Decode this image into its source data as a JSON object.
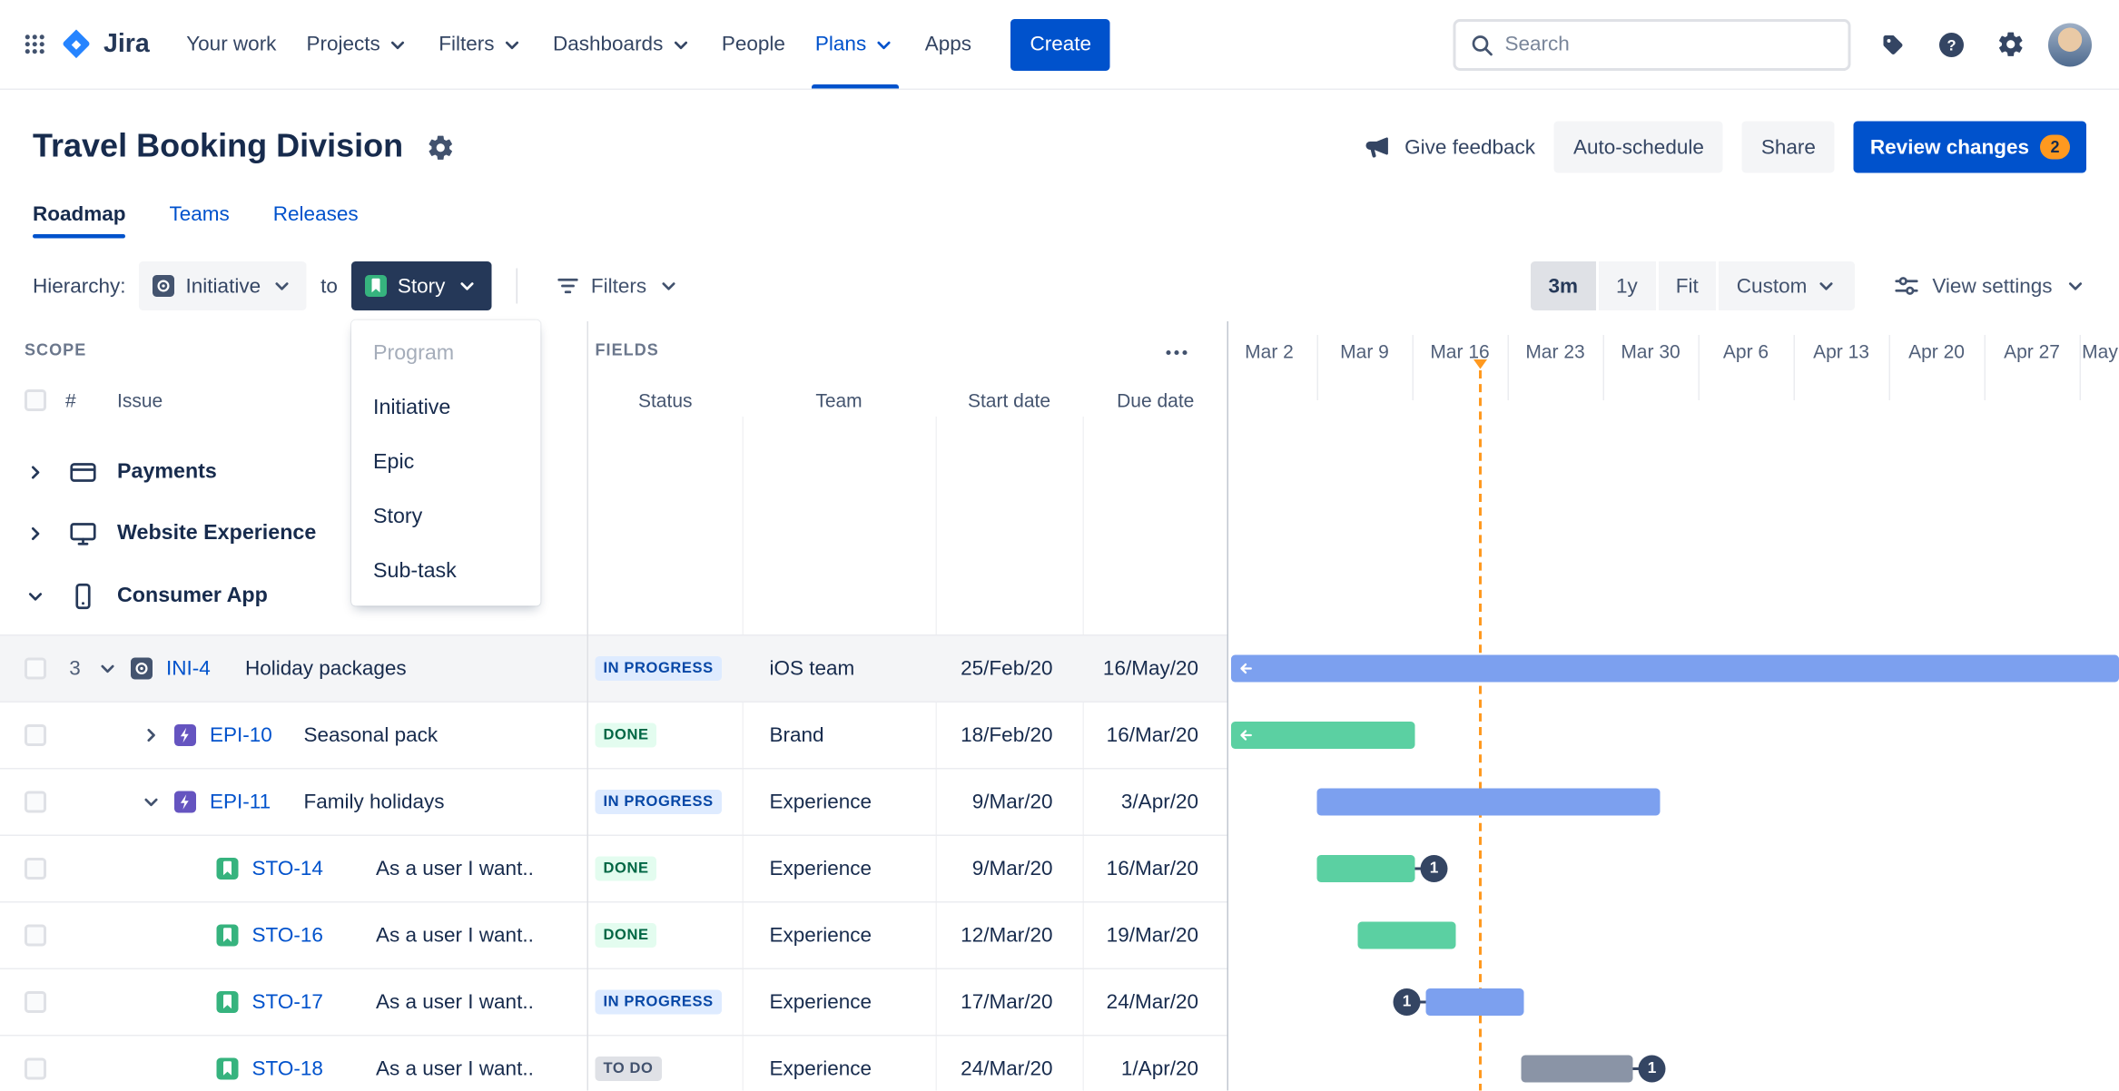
{
  "colors": {
    "brand_blue": "#0052CC",
    "text_dark": "#172B4D",
    "text_subtle": "#42526E",
    "bar_blue": "#7CA0EF",
    "bar_green": "#5BD0A2",
    "bar_gray": "#8A94A6",
    "today_orange": "#FF991F",
    "badge_orange": "#FF991F",
    "epic_purple": "#6554C0",
    "story_green": "#36B37E",
    "initiative_slate": "#44546F",
    "dependency_navy": "#344563"
  },
  "topnav": {
    "brand": "Jira",
    "items": [
      {
        "label": "Your work"
      },
      {
        "label": "Projects",
        "dropdown": true
      },
      {
        "label": "Filters",
        "dropdown": true
      },
      {
        "label": "Dashboards",
        "dropdown": true
      },
      {
        "label": "People"
      },
      {
        "label": "Plans",
        "dropdown": true,
        "active": true
      },
      {
        "label": "Apps"
      }
    ],
    "create_label": "Create",
    "search_placeholder": "Search"
  },
  "header": {
    "title": "Travel Booking Division",
    "give_feedback": "Give feedback",
    "auto_schedule": "Auto-schedule",
    "share": "Share",
    "review_changes": "Review changes",
    "review_badge": "2"
  },
  "tabs": [
    {
      "label": "Roadmap",
      "active": true
    },
    {
      "label": "Teams"
    },
    {
      "label": "Releases"
    }
  ],
  "toolbar": {
    "hierarchy_label": "Hierarchy:",
    "from_type": "Initiative",
    "to_word": "to",
    "to_type": "Story",
    "filters_label": "Filters",
    "zoom": [
      {
        "label": "3m",
        "selected": true
      },
      {
        "label": "1y"
      },
      {
        "label": "Fit"
      },
      {
        "label": "Custom",
        "dropdown": true
      }
    ],
    "view_settings_label": "View settings"
  },
  "dropdown": {
    "items": [
      {
        "label": "Program",
        "disabled": true
      },
      {
        "label": "Initiative"
      },
      {
        "label": "Epic"
      },
      {
        "label": "Story"
      },
      {
        "label": "Sub-task"
      }
    ]
  },
  "scope": {
    "section_label": "SCOPE",
    "columns": {
      "hash": "#",
      "issue": "Issue"
    },
    "groups": [
      {
        "label": "Payments",
        "icon": "credit-card",
        "expanded": false
      },
      {
        "label": "Website Experience",
        "icon": "monitor",
        "expanded": false
      },
      {
        "label": "Consumer App",
        "icon": "mobile-phone",
        "expanded": true
      }
    ]
  },
  "fields": {
    "section_label": "FIELDS",
    "columns": [
      "Status",
      "Team",
      "Start date",
      "Due date"
    ]
  },
  "timeline": {
    "weeks": [
      "Mar 2",
      "Mar 9",
      "Mar 16",
      "Mar 23",
      "Mar 30",
      "Apr 6",
      "Apr 13",
      "Apr 20",
      "Apr 27",
      "May"
    ]
  },
  "rows": [
    {
      "count": "3",
      "chevron": "down",
      "indent": 0,
      "type": "initiative",
      "key": "INI-4",
      "summary": "Holiday packages",
      "status": "IN PROGRESS",
      "status_kind": "inprogress",
      "team": "iOS team",
      "start": "25/Feb/20",
      "due": "16/May/20",
      "shaded": true
    },
    {
      "chevron": "right",
      "indent": 1,
      "type": "epic",
      "key": "EPI-10",
      "summary": "Seasonal pack",
      "status": "DONE",
      "status_kind": "done",
      "team": "Brand",
      "start": "18/Feb/20",
      "due": "16/Mar/20"
    },
    {
      "chevron": "down",
      "indent": 1,
      "type": "epic",
      "key": "EPI-11",
      "summary": "Family holidays",
      "status": "IN PROGRESS",
      "status_kind": "inprogress",
      "team": "Experience",
      "start": "9/Mar/20",
      "due": "3/Apr/20"
    },
    {
      "indent": 2,
      "type": "story",
      "key": "STO-14",
      "summary": "As a user I want..",
      "status": "DONE",
      "status_kind": "done",
      "team": "Experience",
      "start": "9/Mar/20",
      "due": "16/Mar/20",
      "badge": {
        "count": "1",
        "side": "right"
      }
    },
    {
      "indent": 2,
      "type": "story",
      "key": "STO-16",
      "summary": "As a user I want..",
      "status": "DONE",
      "status_kind": "done",
      "team": "Experience",
      "start": "12/Mar/20",
      "due": "19/Mar/20"
    },
    {
      "indent": 2,
      "type": "story",
      "key": "STO-17",
      "summary": "As a user I want..",
      "status": "IN PROGRESS",
      "status_kind": "inprogress",
      "team": "Experience",
      "start": "17/Mar/20",
      "due": "24/Mar/20",
      "badge": {
        "count": "1",
        "side": "left"
      }
    },
    {
      "indent": 2,
      "type": "story",
      "key": "STO-18",
      "summary": "As a user I want..",
      "status": "TO DO",
      "status_kind": "todo",
      "team": "Experience",
      "start": "24/Mar/20",
      "due": "1/Apr/20",
      "badge": {
        "count": "1",
        "side": "right"
      }
    }
  ],
  "icons": {
    "app_switcher": "grid-of-dots",
    "jira_logo": "jira-diamond-mark",
    "search": "magnifier",
    "tag": "filled-tag",
    "help": "question-circle",
    "settings": "gear",
    "avatar": "user-photo",
    "give_feedback": "megaphone",
    "plan_settings": "gear",
    "filters": "filter-lines",
    "view_settings": "sliders",
    "hierarchy_from_type": "initiative-target",
    "hierarchy_to_type": "story-bookmark",
    "fields_more": "ellipsis",
    "bar_overflow": "arrow-left",
    "expand_collapse": "chevron"
  }
}
